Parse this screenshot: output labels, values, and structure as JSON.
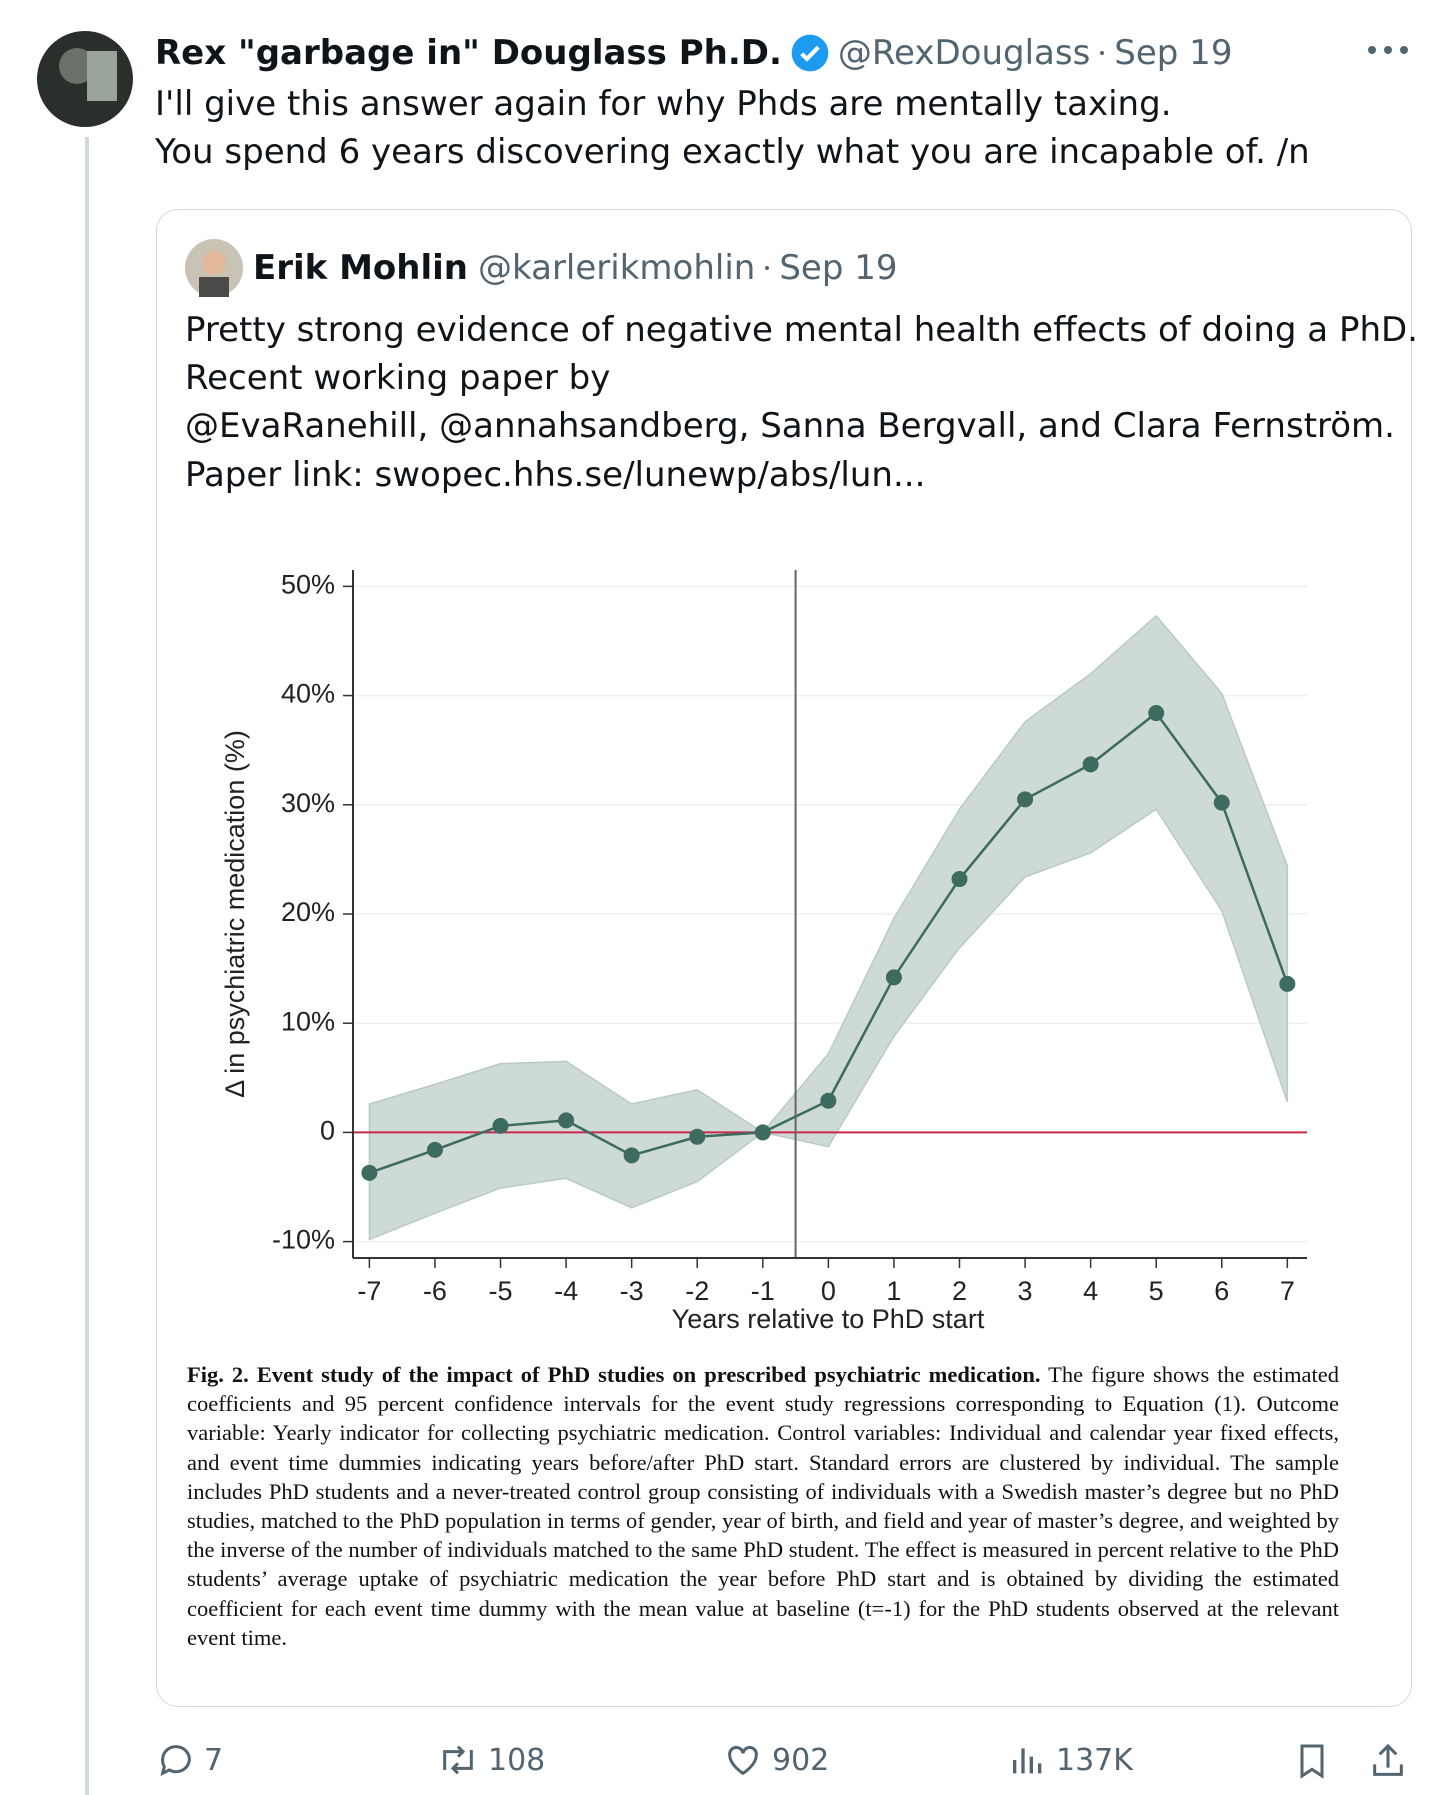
{
  "tweet": {
    "name": "Rex \"garbage in\" Douglass Ph.D.",
    "handle": "@RexDouglass",
    "date": "Sep 19",
    "text": [
      "I'll give this answer again for why Phds are mentally taxing.",
      "You spend 6 years discovering exactly what you are incapable of. /n"
    ]
  },
  "quote": {
    "name": "Erik Mohlin",
    "handle": "@karlerikmohlin",
    "date": "Sep 19",
    "text": [
      "Pretty strong evidence of negative mental health effects of doing a PhD.",
      "Recent working paper by",
      "@EvaRanehill, @annahsandberg, Sanna Bergvall, and  Clara Fernström.",
      "Paper link:  swopec.hhs.se/lunewp/abs/lun..."
    ]
  },
  "chart_data": {
    "type": "line",
    "x_label": "Years relative to PhD start",
    "y_label": "Δ in psychiatric medication (%)",
    "x": [
      -7,
      -6,
      -5,
      -4,
      -3,
      -2,
      -1,
      0,
      1,
      2,
      3,
      4,
      5,
      6,
      7
    ],
    "values": [
      -3.7,
      -1.6,
      0.6,
      1.1,
      -2.1,
      -0.4,
      0,
      2.9,
      14.2,
      23.2,
      30.5,
      33.7,
      38.4,
      30.2,
      13.6
    ],
    "ci_lower": [
      -9.8,
      -7.4,
      -5.1,
      -4.2,
      -6.9,
      -4.5,
      0,
      -1.3,
      8.8,
      16.9,
      23.4,
      25.6,
      29.6,
      20.3,
      2.8
    ],
    "ci_upper": [
      2.6,
      4.4,
      6.3,
      6.5,
      2.6,
      3.9,
      0,
      7.2,
      19.6,
      29.6,
      37.6,
      42.0,
      47.3,
      40.2,
      24.4
    ],
    "color": "#3d6b5f",
    "band_color": "#cddad6",
    "hline": 0,
    "hline_color": "#c8294b",
    "vline": -0.5,
    "xlim": [
      -7.25,
      7.3
    ],
    "ylim": [
      -11.5,
      51.5
    ],
    "xticks": [
      -7,
      -6,
      -5,
      -4,
      -3,
      -2,
      -1,
      0,
      1,
      2,
      3,
      4,
      5,
      6,
      7
    ],
    "yticks": [
      {
        "value": -10,
        "label": "-10%"
      },
      0,
      {
        "value": 10,
        "label": "10%"
      },
      {
        "value": 20,
        "label": "20%"
      },
      {
        "value": 30,
        "label": "30%"
      },
      {
        "value": 40,
        "label": "40%"
      },
      {
        "value": 50,
        "label": "50%"
      }
    ],
    "grid": true
  },
  "caption": {
    "title": "Fig. 2. Event study of the impact of PhD studies on prescribed psychiatric medication.",
    "text": "The figure shows the estimated coefficients and 95 percent confidence intervals for the event study regressions corresponding to Equation (1). Outcome variable: Yearly indicator for collecting psychiatric medication. Control variables: Individual and calendar year fixed effects, and event time dummies indicating years before/after PhD start. Standard errors are clustered by individual. The sample includes PhD students and a never-treated control group consisting of individuals with a Swedish master’s degree but no PhD studies, matched to the PhD population in terms of gender, year of birth, and field and year of master’s degree, and weighted by the inverse of the number of individuals matched to the same PhD student. The effect is measured in percent relative to the PhD students’ average uptake of psychiatric medication the year before PhD start and is obtained by dividing the estimated coefficient for each event time dummy with the mean value at baseline (t=-1) for the PhD students observed at the relevant event time."
  },
  "actions": {
    "replies": "7",
    "reposts": "108",
    "likes": "902",
    "views": "137K"
  }
}
